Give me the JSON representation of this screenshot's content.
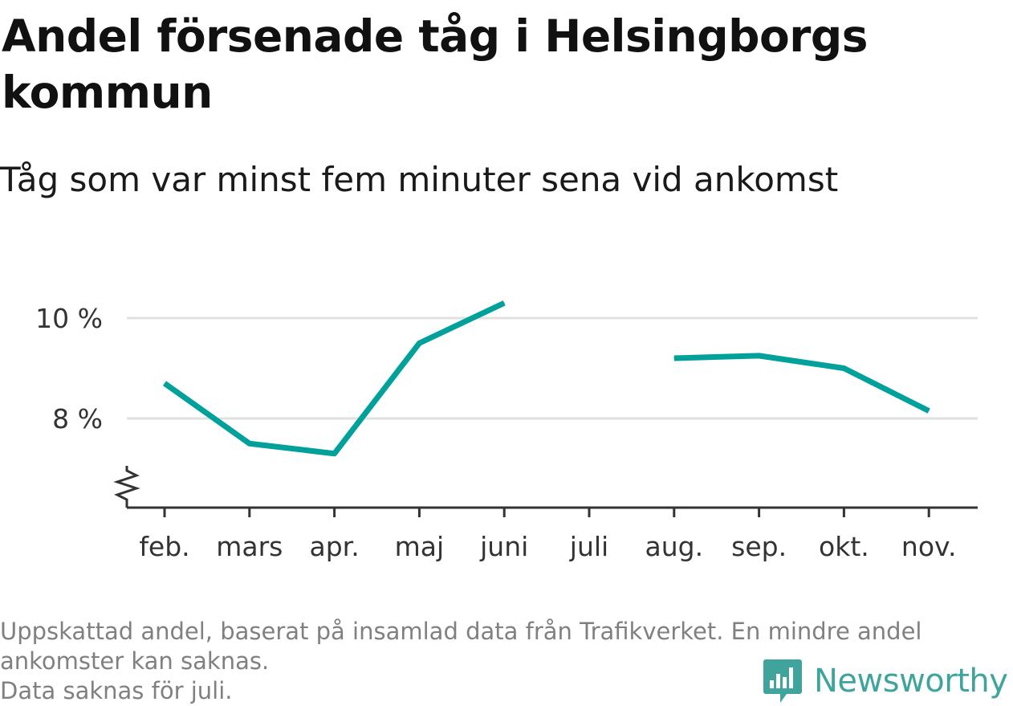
{
  "title": "Andel försenade tåg i Helsingborgs kommun",
  "subtitle": "Tåg som var minst fem minuter sena vid ankomst",
  "chart_data": {
    "type": "line",
    "categories": [
      "feb.",
      "mars",
      "apr.",
      "maj",
      "juni",
      "juli",
      "aug.",
      "sep.",
      "okt.",
      "nov."
    ],
    "series": [
      {
        "values": [
          8.7,
          7.5,
          7.3,
          9.5,
          10.3,
          null,
          9.2,
          9.25,
          9.0,
          8.15
        ]
      }
    ],
    "y_ticks": [
      8,
      10
    ],
    "y_tick_labels": [
      "8 %",
      "10 %"
    ],
    "ylim": [
      6.2,
      10.6
    ],
    "y_axis_broken": true,
    "grid": true,
    "color": "#00a19a"
  },
  "footer": {
    "note_line1": "Uppskattad andel, baserat på insamlad data från Trafikverket. En mindre andel",
    "note_line2": "ankomster kan saknas.",
    "note_line3": "Data saknas för juli."
  },
  "logo": {
    "text": "Newsworthy",
    "icon": "bar-chart-speech-bubble-icon",
    "color": "#3fa49c"
  }
}
